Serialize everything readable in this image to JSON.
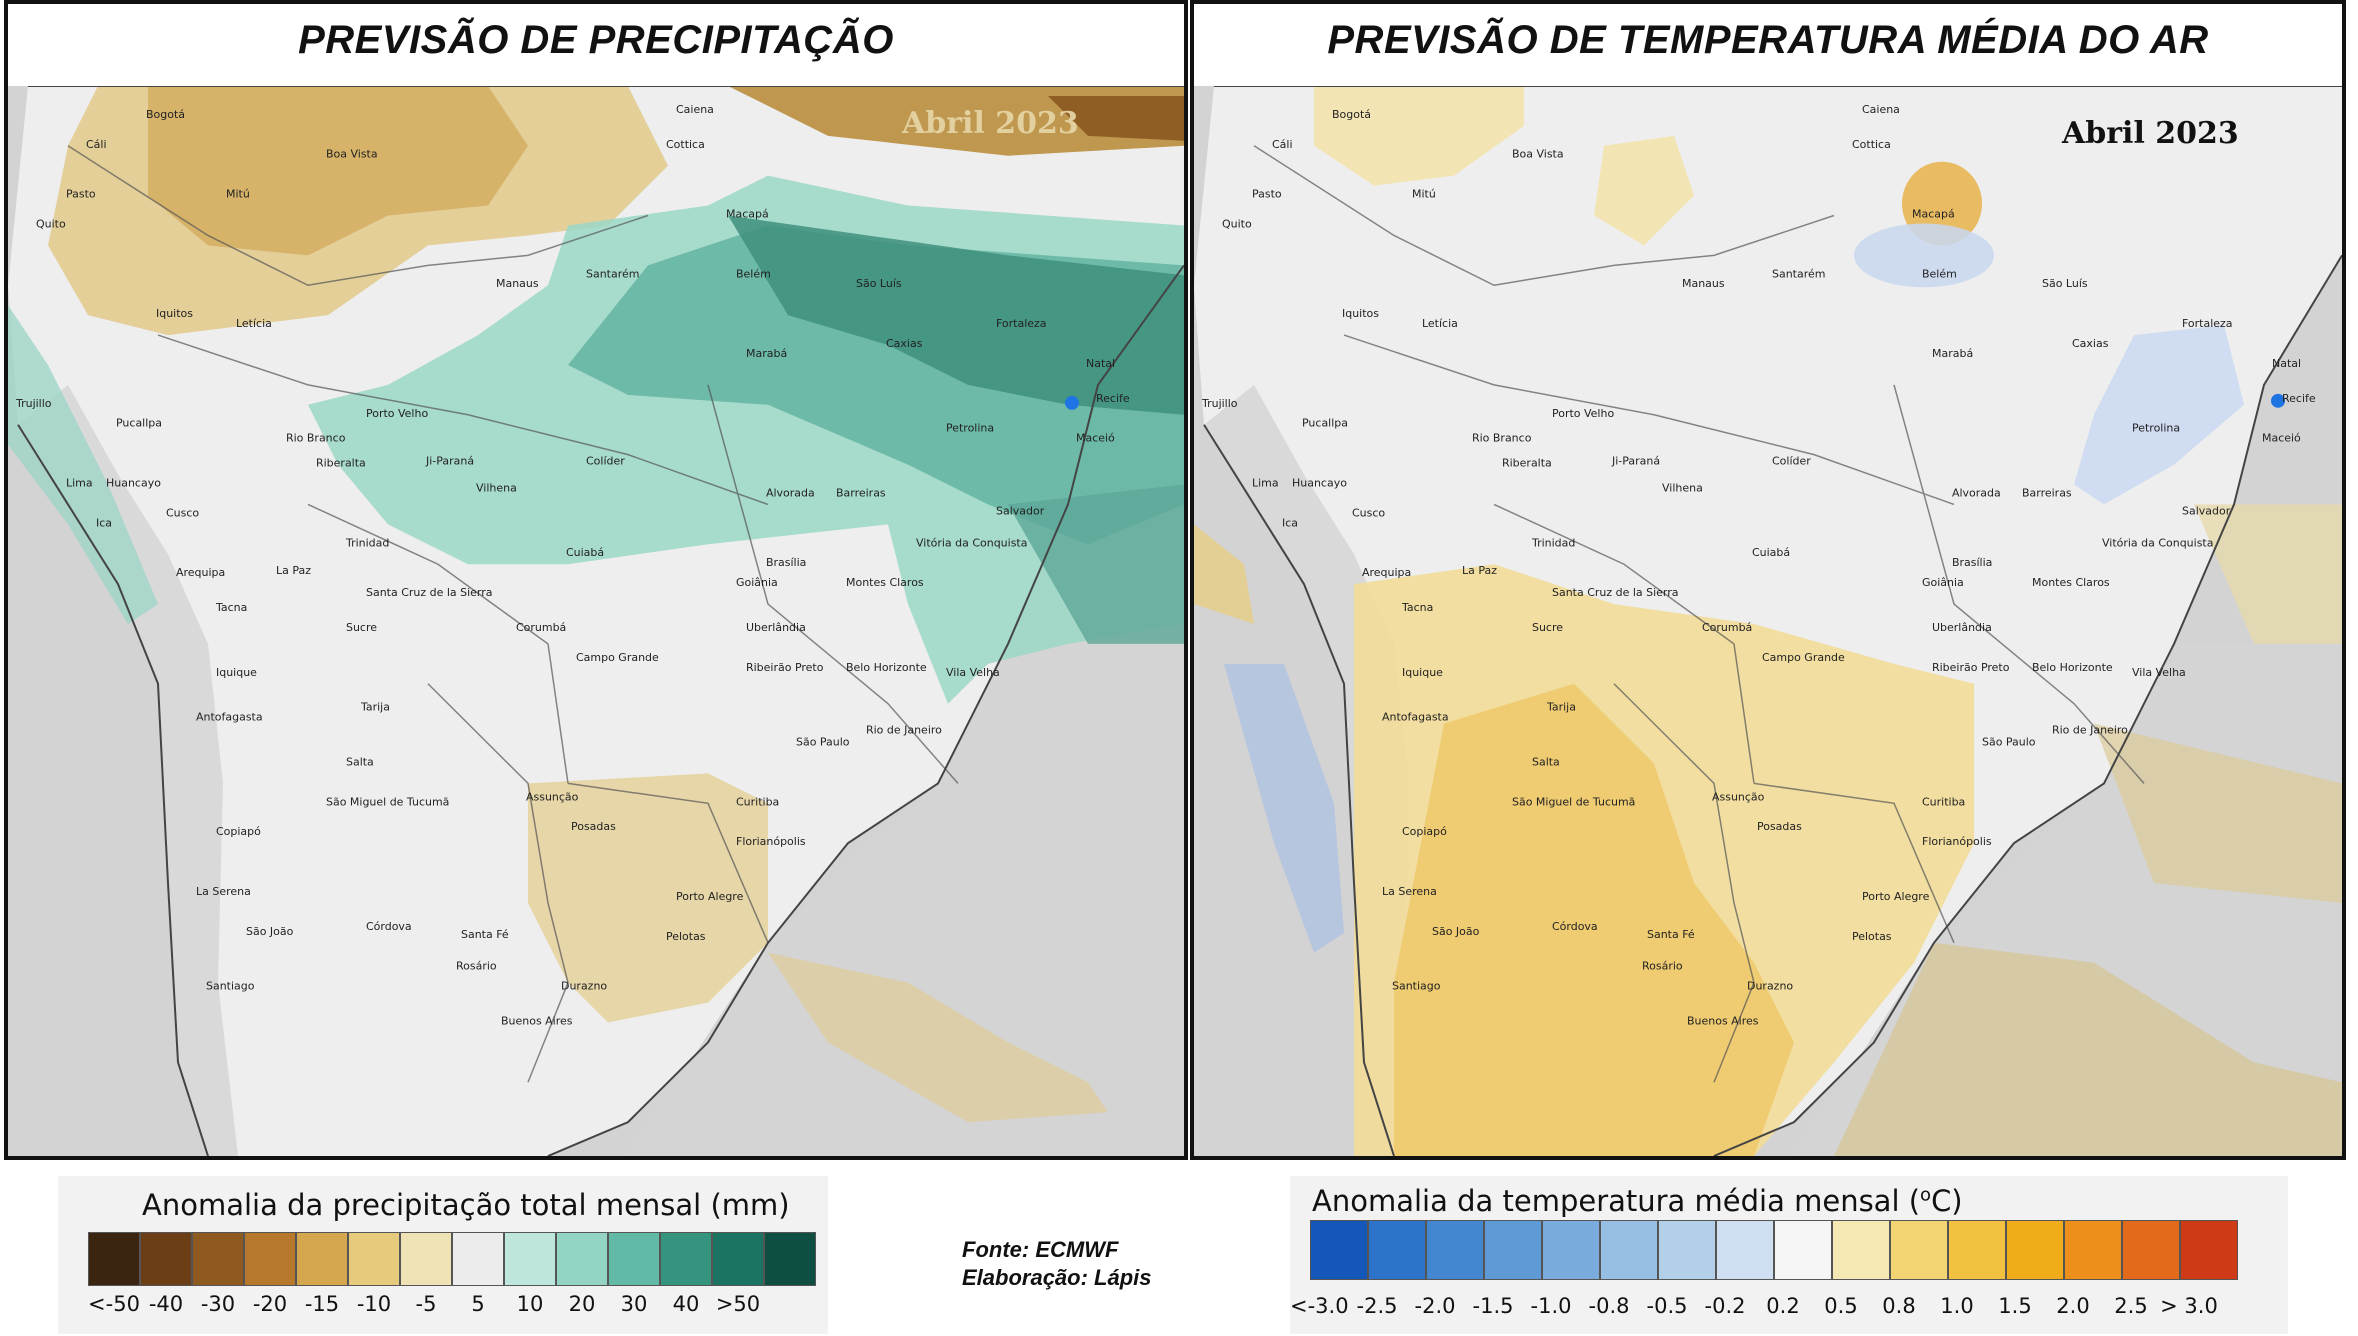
{
  "left_panel": {
    "title": "PREVISÃO DE PRECIPITAÇÃO",
    "month": "Abril 2023"
  },
  "right_panel": {
    "title": "PREVISÃO DE TEMPERATURA MÉDIA DO AR",
    "month": "Abril 2023"
  },
  "cities": [
    "Caiena",
    "Bogotá",
    "Cáli",
    "Cottica",
    "Boa Vista",
    "Pasto",
    "Mitú",
    "Quito",
    "Macapá",
    "Belém",
    "Manaus",
    "Santarém",
    "São Luís",
    "Iquitos",
    "Letícia",
    "Fortaleza",
    "Caxias",
    "Marabá",
    "Natal",
    "Recife",
    "Trujillo",
    "Pucallpa",
    "Porto Velho",
    "Petrolina",
    "Maceió",
    "Rio Branco",
    "Riberalta",
    "Ji-Paraná",
    "Colíder",
    "Vilhena",
    "Lima",
    "Huancayo",
    "Alvorada",
    "Barreiras",
    "Salvador",
    "Ica",
    "Cusco",
    "Trinidad",
    "Vitória da Conquista",
    "Arequipa",
    "La Paz",
    "Cuiabá",
    "Brasília",
    "Goiânia",
    "Montes Claros",
    "Santa Cruz de la Sierra",
    "Tacna",
    "Sucre",
    "Corumbá",
    "Uberlândia",
    "Iquique",
    "Campo Grande",
    "Belo Horizonte",
    "Ribeirão Preto",
    "Vila Velha",
    "Tarija",
    "Rio de Janeiro",
    "Antofagasta",
    "São Paulo",
    "Salta",
    "Assunção",
    "Curitiba",
    "São Miguel de Tucumã",
    "Posadas",
    "Copiapó",
    "Florianópolis",
    "La Serena",
    "Porto Alegre",
    "São João",
    "Córdova",
    "Santa Fé",
    "Pelotas",
    "Rosário",
    "Santiago",
    "Durazno",
    "Buenos Aires"
  ],
  "precip_legend": {
    "title": "Anomalia da precipitação total mensal (mm)",
    "colors": [
      "#3b2510",
      "#6b3e16",
      "#8f5a1f",
      "#b5782d",
      "#d4a64d",
      "#e6cb7c",
      "#efe3b5",
      "#ececec",
      "#bfe6dc",
      "#94d4c5",
      "#62b9a5",
      "#35947e",
      "#1b7462",
      "#0e4f42"
    ],
    "labels": [
      "<-50",
      "-40",
      "-30",
      "-20",
      "-15",
      "-10",
      "-5",
      "5",
      "10",
      "20",
      "30",
      "40",
      ">50"
    ]
  },
  "temp_legend": {
    "title": "Anomalia da temperatura média mensal (",
    "title_sup": "o",
    "title_end": "C)",
    "colors": [
      "#1457b8",
      "#2d73c9",
      "#4387d0",
      "#5d9ad6",
      "#79acdc",
      "#96bfe3",
      "#b2d0ea",
      "#cfdef1",
      "#f5f5f5",
      "#f5e8b2",
      "#f2d473",
      "#f2c13f",
      "#f0ad19",
      "#ec8f1b",
      "#e26a1a",
      "#cf3a16"
    ],
    "labels": [
      "<-3.0",
      "-2.5",
      "-2.0",
      "-1.5",
      "-1.0",
      "-0.8",
      "-0.5",
      "-0.2",
      "0.2",
      "0.5",
      "0.8",
      "1.0",
      "1.5",
      "2.0",
      "2.5",
      "> 3.0"
    ]
  },
  "source": {
    "line1": "Fonte: ECMWF",
    "line2": "Elaboração: Lápis"
  }
}
